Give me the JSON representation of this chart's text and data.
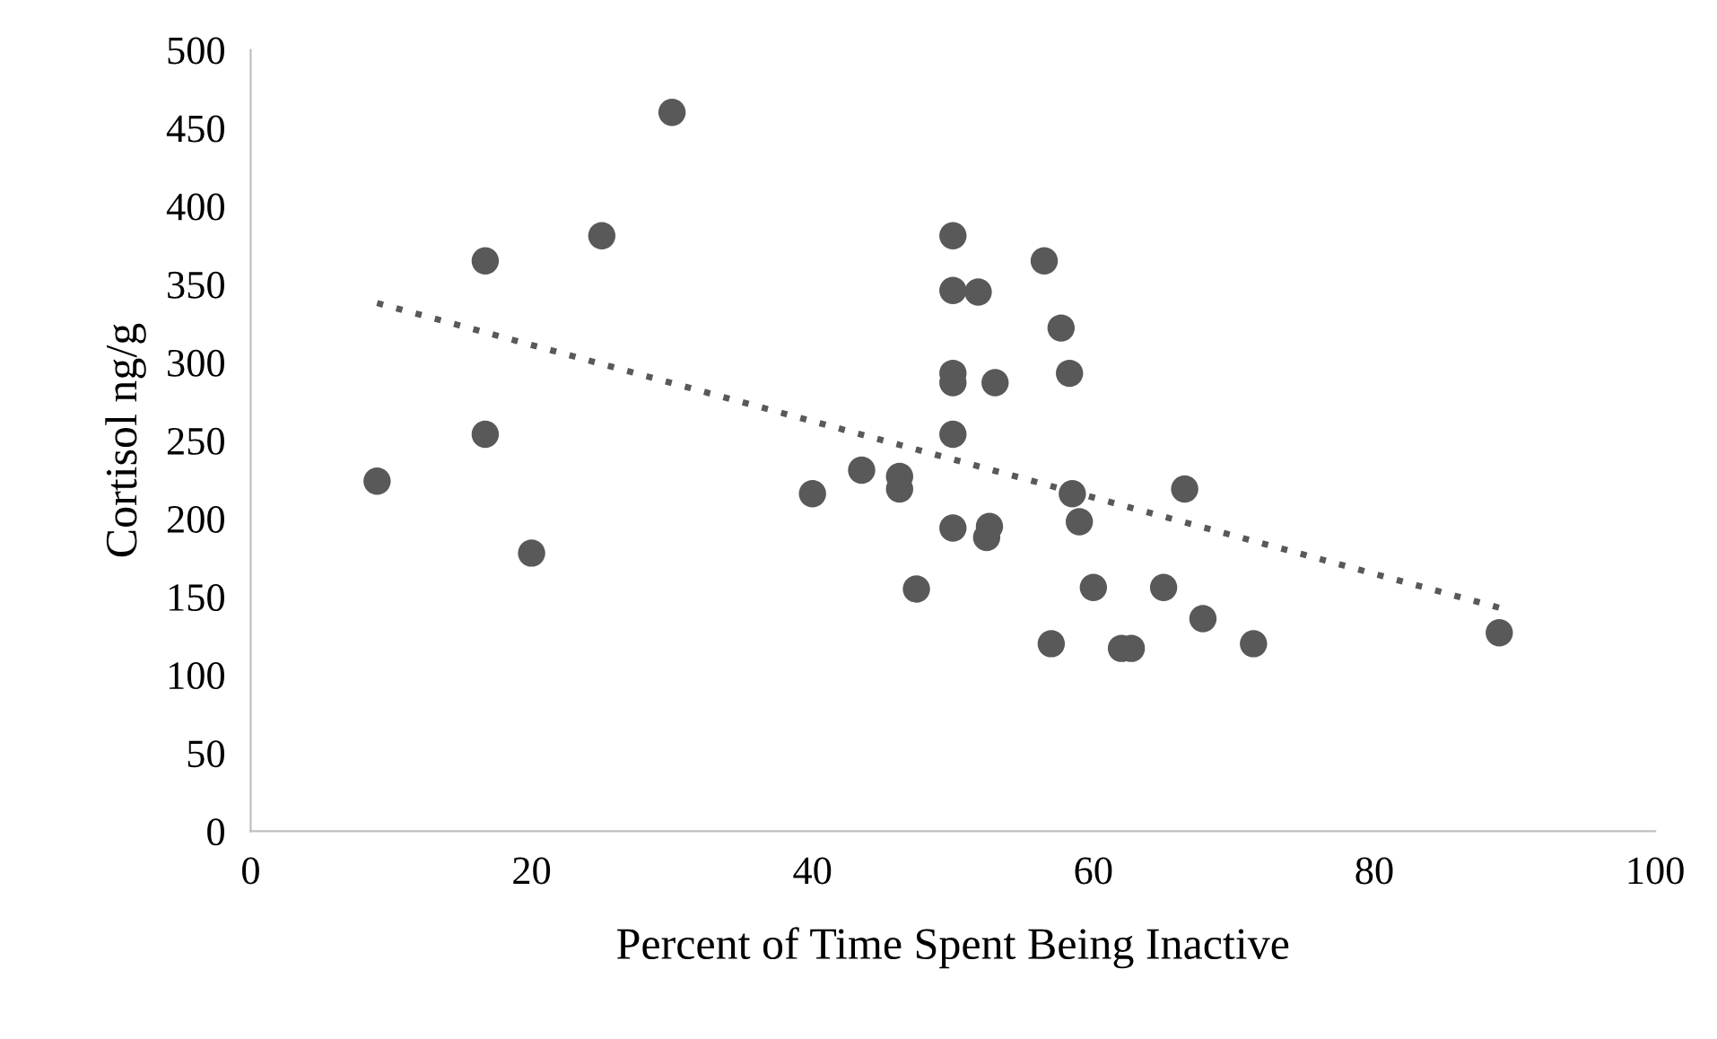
{
  "chart_data": {
    "type": "scatter",
    "xlabel": "Percent of Time Spent Being Inactive",
    "ylabel": "Cortisol ng/g",
    "xlim": [
      0,
      100
    ],
    "xticks": [
      0,
      20,
      40,
      60,
      80,
      100
    ],
    "ylim": [
      0,
      500
    ],
    "yticks": [
      0,
      50,
      100,
      150,
      200,
      250,
      300,
      350,
      400,
      450,
      500
    ],
    "grid": false,
    "legend": false,
    "marker": "circle",
    "series": [
      {
        "color": "#595959",
        "x": [
          9,
          16.7,
          16.7,
          20,
          25,
          30,
          40,
          43.5,
          46.2,
          46.2,
          47.4,
          50,
          50,
          50,
          50,
          50,
          50,
          51.8,
          52.6,
          52.4,
          53,
          56.5,
          57,
          57.7,
          58.3,
          58.5,
          59,
          60,
          62,
          62.7,
          65,
          66.5,
          67.8,
          71.4,
          88.9
        ],
        "values": [
          224,
          365,
          254,
          178,
          381,
          460,
          216,
          231,
          227,
          219,
          155,
          381,
          346,
          293,
          287,
          254,
          194,
          345,
          195,
          188,
          287,
          365,
          120,
          322,
          293,
          216,
          198,
          156,
          117,
          117,
          156,
          219,
          136,
          120,
          127
        ]
      },
      {
        "type": "line",
        "color": "#595959",
        "line_style": "dotted",
        "marker": "none",
        "x": [
          9,
          88.9
        ],
        "values": [
          338,
          143
        ]
      }
    ]
  }
}
